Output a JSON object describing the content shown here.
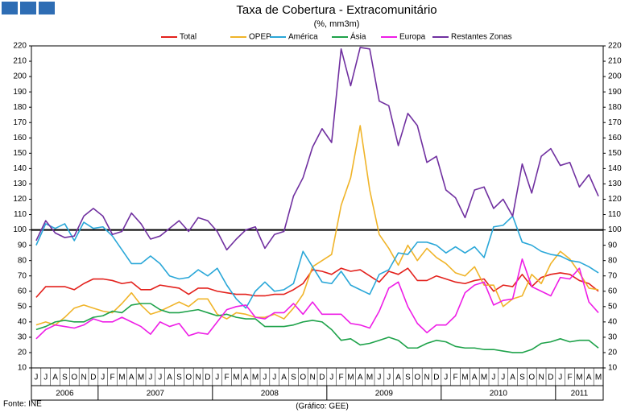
{
  "chart_data": {
    "type": "line",
    "title": "Taxa de Cobertura - Extracomunitário",
    "subtitle": "(%, mm3m)",
    "source": "Fonte: INE",
    "credit": "(Gráfico: GEE)",
    "categories": [
      "J",
      "J",
      "A",
      "S",
      "O",
      "N",
      "D",
      "J",
      "F",
      "M",
      "A",
      "M",
      "J",
      "J",
      "A",
      "S",
      "O",
      "N",
      "D",
      "J",
      "F",
      "M",
      "A",
      "M",
      "J",
      "J",
      "A",
      "S",
      "O",
      "N",
      "D",
      "J",
      "F",
      "M",
      "A",
      "M",
      "J",
      "J",
      "A",
      "S",
      "O",
      "N",
      "D",
      "J",
      "F",
      "M",
      "A",
      "M",
      "J",
      "J",
      "A",
      "S",
      "O",
      "N",
      "D",
      "J",
      "F",
      "M",
      "A",
      "M"
    ],
    "years": [
      "2006",
      "2007",
      "2008",
      "2009",
      "2010",
      "2011"
    ],
    "ylim": [
      10,
      220
    ],
    "yticks": [
      10,
      20,
      30,
      40,
      50,
      60,
      70,
      80,
      90,
      100,
      110,
      120,
      130,
      140,
      150,
      160,
      170,
      180,
      190,
      200,
      210,
      220
    ],
    "reference_line": 100,
    "series": [
      {
        "name": "Total",
        "color": "#e3211c",
        "values": [
          56,
          63,
          63,
          63,
          61,
          65,
          68,
          68,
          67,
          65,
          66,
          61,
          61,
          64,
          63,
          62,
          58,
          62,
          62,
          60,
          59,
          58,
          58,
          57,
          57,
          58,
          58,
          61,
          65,
          74,
          73,
          71,
          75,
          73,
          74,
          70,
          66,
          73,
          71,
          75,
          67,
          67,
          70,
          68,
          66,
          65,
          67,
          68,
          60,
          64,
          63,
          71,
          63,
          69,
          71,
          72,
          71,
          67,
          65,
          60
        ]
      },
      {
        "name": "OPEP",
        "color": "#f0b429",
        "values": [
          38,
          40,
          38,
          43,
          49,
          51,
          49,
          47,
          46,
          52,
          59,
          51,
          45,
          47,
          50,
          53,
          50,
          55,
          55,
          45,
          42,
          46,
          45,
          43,
          43,
          45,
          42,
          49,
          58,
          76,
          80,
          84,
          116,
          134,
          168,
          126,
          97,
          88,
          77,
          90,
          80,
          88,
          82,
          78,
          72,
          70,
          76,
          64,
          64,
          50,
          55,
          57,
          71,
          65,
          78,
          86,
          81,
          72,
          62,
          61
        ]
      },
      {
        "name": "América",
        "color": "#2aa7d8",
        "values": [
          90,
          104,
          101,
          104,
          93,
          105,
          101,
          102,
          96,
          87,
          78,
          78,
          83,
          78,
          70,
          68,
          69,
          74,
          70,
          75,
          64,
          55,
          49,
          60,
          66,
          60,
          61,
          65,
          86,
          76,
          66,
          65,
          73,
          64,
          61,
          58,
          71,
          74,
          85,
          84,
          92,
          92,
          90,
          85,
          89,
          85,
          89,
          82,
          102,
          103,
          109,
          92,
          90,
          86,
          84,
          83,
          80,
          79,
          76,
          72
        ]
      },
      {
        "name": "Ásia",
        "color": "#1ea24a",
        "values": [
          35,
          37,
          40,
          41,
          40,
          40,
          43,
          44,
          47,
          46,
          51,
          52,
          52,
          48,
          46,
          46,
          47,
          48,
          46,
          44,
          45,
          43,
          42,
          42,
          37,
          37,
          37,
          38,
          40,
          41,
          40,
          35,
          28,
          29,
          25,
          26,
          28,
          30,
          28,
          23,
          23,
          26,
          28,
          27,
          24,
          23,
          23,
          22,
          22,
          21,
          20,
          20,
          22,
          26,
          27,
          29,
          27,
          28,
          28,
          23
        ]
      },
      {
        "name": "Europa",
        "color": "#ee1ee6",
        "values": [
          29,
          35,
          38,
          37,
          36,
          38,
          42,
          40,
          40,
          43,
          40,
          37,
          32,
          40,
          37,
          39,
          31,
          33,
          32,
          40,
          48,
          50,
          51,
          43,
          42,
          46,
          46,
          52,
          45,
          53,
          45,
          45,
          45,
          39,
          38,
          36,
          47,
          62,
          66,
          50,
          39,
          33,
          38,
          38,
          44,
          59,
          64,
          66,
          51,
          54,
          55,
          81,
          63,
          60,
          57,
          69,
          68,
          75,
          53,
          46
        ]
      },
      {
        "name": "Restantes Zonas",
        "color": "#7030a0",
        "values": [
          93,
          106,
          98,
          95,
          96,
          109,
          114,
          109,
          97,
          99,
          111,
          104,
          94,
          96,
          101,
          106,
          99,
          108,
          106,
          99,
          87,
          94,
          100,
          102,
          88,
          97,
          99,
          122,
          134,
          154,
          166,
          157,
          218,
          194,
          219,
          218,
          184,
          181,
          155,
          176,
          168,
          144,
          148,
          126,
          121,
          108,
          126,
          128,
          114,
          120,
          109,
          143,
          124,
          148,
          153,
          142,
          144,
          128,
          136,
          122
        ]
      }
    ]
  }
}
